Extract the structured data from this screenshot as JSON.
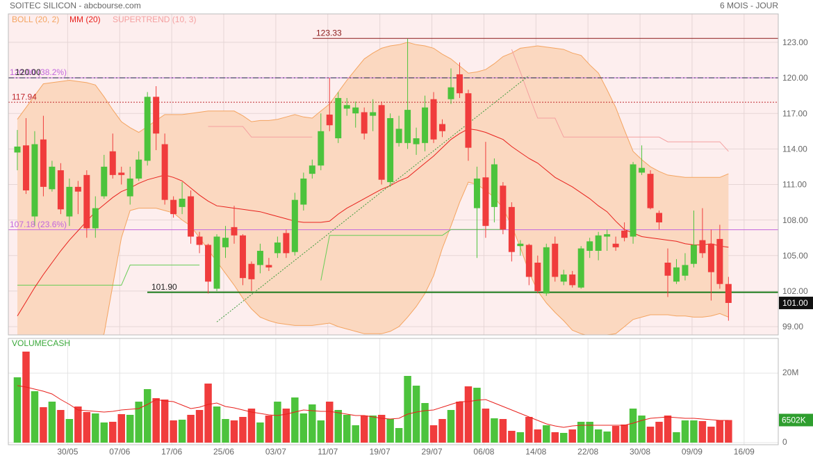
{
  "chart_data": [
    {
      "type": "candlestick",
      "title": "SOITEC SILICON - abcbourse.com",
      "subtitle": "6 MOIS - JOUR",
      "up_color": "#4cc33c",
      "down_color": "#f03c3c",
      "xlim": [
        -1.04,
        87.74
      ],
      "xticks": [
        {
          "value": 5.8,
          "label": "30/05"
        },
        {
          "value": 11.8,
          "label": "07/06"
        },
        {
          "value": 17.8,
          "label": "17/06"
        },
        {
          "value": 23.8,
          "label": "25/06"
        },
        {
          "value": 29.8,
          "label": "03/07"
        },
        {
          "value": 35.8,
          "label": "11/07"
        },
        {
          "value": 41.8,
          "label": "19/07"
        },
        {
          "value": 47.8,
          "label": "29/07"
        },
        {
          "value": 53.8,
          "label": "06/08"
        },
        {
          "value": 59.8,
          "label": "14/08"
        },
        {
          "value": 65.8,
          "label": "22/08"
        },
        {
          "value": 71.8,
          "label": "30/08"
        },
        {
          "value": 77.8,
          "label": "09/09"
        },
        {
          "value": 83.8,
          "label": "16/09"
        }
      ],
      "ylim": [
        98.3,
        125.4
      ],
      "yticks": [
        {
          "value": 123,
          "label": "123.00"
        },
        {
          "value": 120,
          "label": "120.00"
        },
        {
          "value": 117,
          "label": "117.00"
        },
        {
          "value": 114,
          "label": "114.00"
        },
        {
          "value": 111,
          "label": "111.00"
        },
        {
          "value": 108,
          "label": "108.00"
        },
        {
          "value": 105,
          "label": "105.00"
        },
        {
          "value": 102,
          "label": "102.00"
        },
        {
          "value": 99,
          "label": "99.00"
        }
      ],
      "grid": true,
      "open": [
        113.7,
        114.3,
        108.3,
        114.8,
        110.6,
        112.2,
        108.3,
        110.8,
        111.8,
        107.3,
        110.0,
        113.8,
        112.0,
        110.0,
        111.5,
        113.0,
        118.4,
        114.4,
        109.7,
        109.1,
        110.0,
        106.6,
        105.9,
        102.2,
        105.7,
        107.4,
        106.7,
        104.3,
        104.2,
        104.2,
        105.2,
        106.9,
        105.3,
        109.3,
        111.9,
        112.6,
        116.9,
        114.9,
        117.4,
        117.0,
        117.1,
        116.8,
        117.7,
        111.2,
        114.5,
        114.5,
        114.4,
        114.5,
        118.2,
        116.1,
        118.2,
        120.3,
        118.7,
        109.0,
        111.6,
        109.1,
        110.9,
        109.1,
        105.8,
        105.9,
        104.4,
        101.8,
        106.0,
        102.8,
        103.4,
        102.3,
        105.4,
        105.4,
        106.6,
        106.0,
        107.1,
        106.6,
        112.0,
        111.9,
        108.6,
        104.4,
        102.8,
        103.3,
        104.3,
        106.3,
        106.0,
        106.4,
        102.6
      ],
      "high": [
        115.6,
        116.6,
        115.5,
        116.8,
        113.0,
        112.8,
        111.5,
        111.3,
        112.2,
        110.0,
        113.5,
        115.3,
        112.5,
        112.5,
        113.8,
        118.8,
        119.3,
        115.3,
        110.0,
        111.2,
        110.5,
        107.0,
        106.0,
        106.8,
        107.5,
        109.2,
        106.8,
        104.5,
        106.0,
        104.8,
        106.6,
        107.2,
        110.3,
        112.0,
        113.1,
        117.0,
        120.0,
        118.8,
        118.3,
        118.0,
        117.5,
        118.2,
        118.0,
        117.0,
        116.8,
        123.3,
        115.8,
        118.5,
        118.8,
        116.5,
        120.8,
        121.3,
        119.0,
        112.5,
        114.6,
        113.2,
        111.2,
        109.5,
        106.3,
        106.0,
        105.0,
        106.0,
        106.6,
        103.8,
        103.7,
        105.8,
        106.5,
        107.0,
        107.2,
        106.6,
        107.8,
        112.9,
        114.3,
        112.2,
        108.8,
        105.6,
        104.7,
        105.2,
        108.8,
        109.0,
        107.2,
        107.6,
        103.2
      ],
      "low": [
        112.2,
        110.2,
        107.5,
        110.0,
        110.4,
        108.5,
        107.5,
        108.5,
        106.5,
        106.5,
        109.8,
        111.5,
        111.0,
        109.3,
        111.3,
        112.6,
        113.9,
        109.3,
        108.2,
        108.5,
        106.0,
        105.2,
        101.8,
        102.0,
        104.8,
        106.0,
        102.5,
        102.0,
        103.5,
        103.7,
        104.8,
        104.8,
        105.0,
        108.8,
        111.5,
        112.2,
        115.5,
        114.5,
        116.8,
        115.8,
        114.8,
        115.5,
        111.0,
        110.8,
        114.2,
        114.0,
        113.5,
        113.8,
        114.5,
        115.0,
        117.8,
        118.3,
        113.0,
        104.8,
        106.5,
        107.8,
        106.8,
        104.5,
        105.0,
        102.5,
        101.8,
        101.6,
        102.8,
        102.5,
        102.3,
        102.2,
        104.8,
        104.6,
        105.4,
        105.4,
        106.2,
        106.0,
        111.8,
        108.9,
        107.2,
        101.5,
        102.6,
        102.9,
        104.0,
        104.8,
        101.2,
        102.2,
        99.5
      ],
      "close": [
        114.2,
        110.5,
        114.4,
        110.8,
        112.5,
        108.9,
        110.8,
        110.4,
        107.3,
        109.0,
        112.5,
        111.8,
        111.8,
        111.5,
        113.1,
        118.4,
        115.3,
        109.7,
        108.5,
        109.8,
        106.6,
        105.9,
        102.8,
        106.6,
        106.5,
        106.7,
        103.1,
        103.0,
        105.4,
        104.0,
        106.1,
        105.2,
        109.7,
        111.5,
        112.6,
        115.5,
        116.0,
        118.3,
        117.7,
        117.5,
        115.3,
        117.1,
        111.4,
        116.6,
        115.7,
        117.3,
        114.9,
        117.5,
        114.8,
        115.5,
        119.2,
        118.7,
        114.1,
        111.5,
        107.5,
        112.7,
        107.2,
        105.3,
        106.0,
        103.2,
        102.0,
        105.7,
        103.2,
        103.4,
        102.5,
        105.6,
        106.2,
        106.7,
        106.8,
        105.7,
        106.5,
        112.7,
        112.4,
        109.0,
        107.8,
        103.3,
        104.0,
        104.2,
        105.9,
        105.2,
        103.6,
        102.6,
        101.0
      ],
      "last_label": "101.00",
      "bollinger": {
        "name": "BOLL (20, 2)",
        "color": "#f4a460",
        "fill": "#fbd8c0",
        "upper": [
          116.5,
          117.5,
          118.5,
          119.5,
          119.6,
          119.7,
          119.8,
          119.7,
          119.6,
          119.4,
          118.4,
          117.3,
          116.3,
          115.8,
          115.4,
          115.9,
          116.4,
          116.9,
          116.9,
          116.9,
          117.0,
          117.1,
          117.2,
          117.2,
          117.2,
          117.2,
          116.8,
          116.3,
          116.4,
          116.4,
          116.5,
          116.7,
          116.9,
          116.7,
          116.6,
          117.2,
          117.8,
          118.8,
          119.8,
          120.7,
          121.6,
          122.1,
          122.5,
          122.7,
          122.8,
          123.0,
          122.8,
          122.7,
          122.5,
          122.0,
          121.6,
          121.0,
          120.4,
          120.5,
          120.7,
          121.2,
          121.8,
          122.1,
          122.5,
          122.6,
          122.7,
          122.6,
          122.5,
          122.4,
          122.1,
          121.9,
          121.1,
          120.4,
          119.0,
          117.5,
          115.6,
          113.8,
          113.1,
          112.5,
          112.1,
          111.8,
          111.7,
          111.6,
          111.6,
          111.6,
          111.6,
          111.6,
          111.9
        ],
        "lower": [
          96.0,
          96.1,
          96.3,
          96.5,
          96.7,
          96.9,
          97.1,
          97.2,
          97.4,
          97.5,
          98.4,
          102.5,
          106.5,
          108.8,
          109.0,
          109.0,
          109.0,
          108.8,
          108.6,
          108.0,
          107.5,
          106.5,
          105.5,
          104.5,
          103.5,
          102.5,
          101.4,
          100.5,
          99.8,
          99.5,
          99.3,
          99.2,
          99.1,
          99.1,
          99.1,
          99.2,
          99.3,
          99.0,
          98.8,
          98.6,
          98.4,
          98.4,
          98.4,
          98.6,
          99.0,
          99.8,
          100.7,
          101.8,
          103.3,
          105.6,
          107.5,
          109.5,
          111.2,
          111.0,
          110.5,
          109.9,
          109.0,
          107.5,
          105.7,
          103.6,
          102.0,
          101.0,
          100.2,
          99.5,
          98.7,
          98.4,
          98.2,
          98.2,
          98.3,
          98.4,
          99.0,
          99.6,
          99.8,
          100.0,
          100.0,
          100.0,
          99.9,
          99.9,
          99.8,
          99.8,
          99.9,
          100.1,
          99.8
        ]
      },
      "mm": {
        "name": "MM (20)",
        "color": "#e8201c",
        "values": [
          99.9,
          101.1,
          102.3,
          103.4,
          104.4,
          105.4,
          106.3,
          107.1,
          107.9,
          108.7,
          109.3,
          109.9,
          110.4,
          110.7,
          111.1,
          111.4,
          111.6,
          111.8,
          111.6,
          111.3,
          110.7,
          110.1,
          109.6,
          109.2,
          109.1,
          109.0,
          108.9,
          108.8,
          108.7,
          108.5,
          108.3,
          108.1,
          107.9,
          107.8,
          107.8,
          107.8,
          107.9,
          108.5,
          109.0,
          109.4,
          109.8,
          110.2,
          110.6,
          110.9,
          111.3,
          111.6,
          112.2,
          112.8,
          113.4,
          114.1,
          114.8,
          115.3,
          115.7,
          115.6,
          115.4,
          115.1,
          114.8,
          114.2,
          113.7,
          113.2,
          112.8,
          112.2,
          111.6,
          111.2,
          110.8,
          110.3,
          109.8,
          109.2,
          108.7,
          107.9,
          107.2,
          106.9,
          106.6,
          106.5,
          106.4,
          106.3,
          106.2,
          106.0,
          105.9,
          105.9,
          106.0,
          105.8,
          105.7
        ]
      },
      "supertrend": {
        "name": "SUPERTREND (10, 3)",
        "color": "#f4a0a0",
        "support_color": "#66cc55",
        "support": [
          102.5,
          102.5,
          102.5,
          102.5,
          102.5,
          102.5,
          102.5,
          102.5,
          102.5,
          102.5,
          102.5,
          102.5,
          102.5,
          104.2,
          104.2,
          104.2,
          104.2,
          104.2,
          104.2,
          104.2,
          104.2,
          104.2,
          null,
          null,
          null,
          null,
          null,
          null,
          null,
          null,
          null,
          null,
          null,
          null,
          null,
          102.9,
          106.7,
          106.7,
          106.7,
          106.7,
          106.7,
          106.7,
          106.7,
          106.7,
          106.7,
          106.7,
          106.7,
          106.7,
          106.7,
          106.7,
          107.2,
          107.2,
          107.2,
          107.2,
          107.2,
          107.2,
          107.2,
          null,
          null,
          null,
          null,
          null,
          null,
          null,
          null,
          null,
          null,
          null,
          null,
          null,
          null,
          null,
          null,
          null,
          null,
          null,
          null,
          null,
          null,
          null,
          null,
          null,
          null
        ],
        "resistance": [
          null,
          null,
          null,
          null,
          null,
          null,
          null,
          null,
          null,
          null,
          null,
          null,
          null,
          null,
          null,
          null,
          null,
          null,
          null,
          null,
          null,
          null,
          115.9,
          115.9,
          115.9,
          115.9,
          115.9,
          115.0,
          115.0,
          115.0,
          115.0,
          115.0,
          115.0,
          115.0,
          115.0,
          null,
          null,
          null,
          null,
          null,
          null,
          null,
          null,
          null,
          null,
          null,
          null,
          null,
          null,
          null,
          null,
          null,
          null,
          null,
          null,
          null,
          null,
          122.4,
          120.5,
          118.5,
          116.6,
          116.6,
          116.6,
          115.0,
          115.0,
          115.0,
          115.0,
          115.0,
          115.0,
          115.0,
          115.0,
          115.0,
          115.0,
          115.0,
          115.0,
          114.6,
          114.6,
          114.6,
          114.6,
          114.6,
          114.6,
          114.6,
          113.8
        ]
      },
      "levels": [
        {
          "value": 123.33,
          "label": "123.33",
          "color": "#8b1a1a",
          "style": "solid"
        },
        {
          "value": 120.0,
          "label": "120.00",
          "color": "#1a1a4a",
          "style": "dashdot"
        },
        {
          "value": 117.94,
          "label": "117.94",
          "color": "#c0272d",
          "style": "dotted"
        },
        {
          "value": 101.9,
          "label": "101.90",
          "color": "#1a7a1a",
          "style": "thick"
        }
      ],
      "fibo_color": "#c266dd",
      "fibo": [
        {
          "value": 120.0,
          "label": "120.00 (38.2%)"
        },
        {
          "value": 107.18,
          "label": "107.18 (23.6%)"
        }
      ],
      "trendline": {
        "x": [
          23,
          59
        ],
        "values": [
          99.4,
          120.2
        ],
        "color": "#3a9a3a"
      }
    },
    {
      "type": "bar",
      "title": "VOLUMECASH",
      "title_color": "#3aa83a",
      "ylim": [
        0,
        30
      ],
      "yticks": [
        {
          "value": 20,
          "label": "20M"
        },
        0
      ],
      "values": [
        18.8,
        26.2,
        14.8,
        10.2,
        11.8,
        9.4,
        6.8,
        10.4,
        8.8,
        8.4,
        5.8,
        6.0,
        8.2,
        8.0,
        11.8,
        15.4,
        12.8,
        12.4,
        6.4,
        6.6,
        8.0,
        9.4,
        17.0,
        10.4,
        6.8,
        6.4,
        7.4,
        9.8,
        5.8,
        7.8,
        11.8,
        9.8,
        13.0,
        8.4,
        11.0,
        6.4,
        11.8,
        9.4,
        8.0,
        5.0,
        7.8,
        7.8,
        8.0,
        6.8,
        4.2,
        19.2,
        16.4,
        11.4,
        5.0,
        6.8,
        9.4,
        11.8,
        16.2,
        15.8,
        9.8,
        7.0,
        6.8,
        3.4,
        3.0,
        7.4,
        3.8,
        5.0,
        3.0,
        2.8,
        3.8,
        6.0,
        6.0,
        3.8,
        3.2,
        4.8,
        5.2,
        9.8,
        7.8,
        4.6,
        6.0,
        7.8,
        3.0,
        6.4,
        6.4,
        6.2,
        4.6,
        6.4,
        6.502
      ],
      "last_label": "6502K",
      "ma_color": "#e8201c",
      "ma_values": [
        16.4,
        16.0,
        15.4,
        14.8,
        14.0,
        12.4,
        11.0,
        9.4,
        9.2,
        9.0,
        8.8,
        9.0,
        9.4,
        9.6,
        9.8,
        11.0,
        12.4,
        12.0,
        11.8,
        10.8,
        9.8,
        10.2,
        11.0,
        11.4,
        10.4,
        10.0,
        9.4,
        8.8,
        8.4,
        8.0,
        7.8,
        8.2,
        8.8,
        9.4,
        9.2,
        9.0,
        9.0,
        8.6,
        8.2,
        7.8,
        7.8,
        7.4,
        7.0,
        6.8,
        7.0,
        8.2,
        8.8,
        9.2,
        9.4,
        10.2,
        11.0,
        11.8,
        11.8,
        12.2,
        12.4,
        11.4,
        10.4,
        9.4,
        8.4,
        7.4,
        6.4,
        5.4,
        4.8,
        4.4,
        4.8,
        5.0,
        5.0,
        5.0,
        5.0,
        5.0,
        5.0,
        5.6,
        6.4,
        7.0,
        7.2,
        7.4,
        7.2,
        7.0,
        7.0,
        6.8,
        6.6,
        6.4,
        6.4
      ]
    }
  ]
}
